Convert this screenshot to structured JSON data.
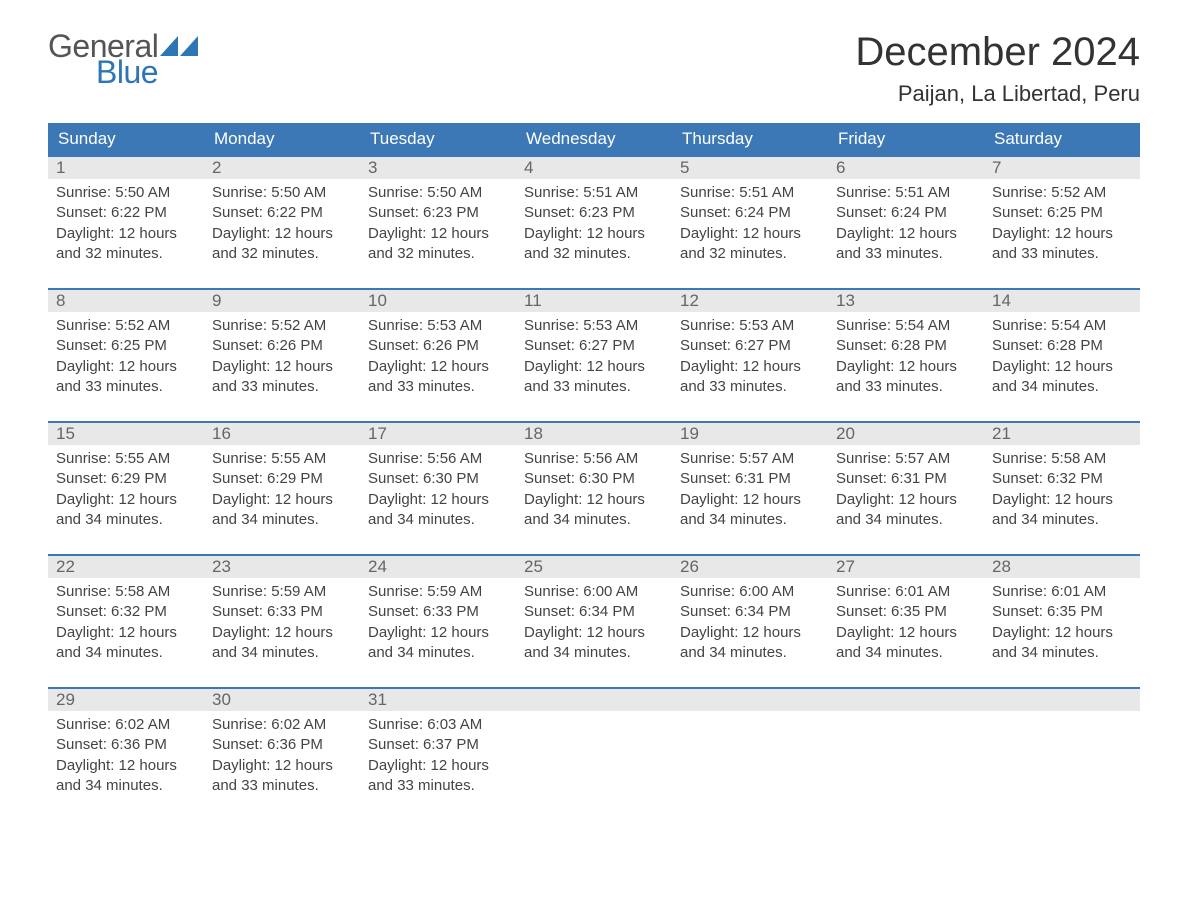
{
  "brand": {
    "line1": "General",
    "line2": "Blue",
    "flag_color": "#2e75b6",
    "text_gray": "#555555"
  },
  "title": "December 2024",
  "location": "Paijan, La Libertad, Peru",
  "colors": {
    "header_bg": "#3b78b5",
    "header_text": "#ffffff",
    "row_border": "#3b78b5",
    "daynum_bg": "#e8e8e8",
    "daynum_text": "#666666",
    "body_text": "#444444",
    "page_bg": "#ffffff"
  },
  "fonts": {
    "title_pt": 40,
    "location_pt": 22,
    "dow_pt": 17,
    "daynum_pt": 17,
    "body_pt": 15
  },
  "days_of_week": [
    "Sunday",
    "Monday",
    "Tuesday",
    "Wednesday",
    "Thursday",
    "Friday",
    "Saturday"
  ],
  "labels": {
    "sunrise": "Sunrise:",
    "sunset": "Sunset:",
    "daylight": "Daylight:"
  },
  "weeks": [
    [
      {
        "n": 1,
        "sunrise": "5:50 AM",
        "sunset": "6:22 PM",
        "daylight": "12 hours and 32 minutes."
      },
      {
        "n": 2,
        "sunrise": "5:50 AM",
        "sunset": "6:22 PM",
        "daylight": "12 hours and 32 minutes."
      },
      {
        "n": 3,
        "sunrise": "5:50 AM",
        "sunset": "6:23 PM",
        "daylight": "12 hours and 32 minutes."
      },
      {
        "n": 4,
        "sunrise": "5:51 AM",
        "sunset": "6:23 PM",
        "daylight": "12 hours and 32 minutes."
      },
      {
        "n": 5,
        "sunrise": "5:51 AM",
        "sunset": "6:24 PM",
        "daylight": "12 hours and 32 minutes."
      },
      {
        "n": 6,
        "sunrise": "5:51 AM",
        "sunset": "6:24 PM",
        "daylight": "12 hours and 33 minutes."
      },
      {
        "n": 7,
        "sunrise": "5:52 AM",
        "sunset": "6:25 PM",
        "daylight": "12 hours and 33 minutes."
      }
    ],
    [
      {
        "n": 8,
        "sunrise": "5:52 AM",
        "sunset": "6:25 PM",
        "daylight": "12 hours and 33 minutes."
      },
      {
        "n": 9,
        "sunrise": "5:52 AM",
        "sunset": "6:26 PM",
        "daylight": "12 hours and 33 minutes."
      },
      {
        "n": 10,
        "sunrise": "5:53 AM",
        "sunset": "6:26 PM",
        "daylight": "12 hours and 33 minutes."
      },
      {
        "n": 11,
        "sunrise": "5:53 AM",
        "sunset": "6:27 PM",
        "daylight": "12 hours and 33 minutes."
      },
      {
        "n": 12,
        "sunrise": "5:53 AM",
        "sunset": "6:27 PM",
        "daylight": "12 hours and 33 minutes."
      },
      {
        "n": 13,
        "sunrise": "5:54 AM",
        "sunset": "6:28 PM",
        "daylight": "12 hours and 33 minutes."
      },
      {
        "n": 14,
        "sunrise": "5:54 AM",
        "sunset": "6:28 PM",
        "daylight": "12 hours and 34 minutes."
      }
    ],
    [
      {
        "n": 15,
        "sunrise": "5:55 AM",
        "sunset": "6:29 PM",
        "daylight": "12 hours and 34 minutes."
      },
      {
        "n": 16,
        "sunrise": "5:55 AM",
        "sunset": "6:29 PM",
        "daylight": "12 hours and 34 minutes."
      },
      {
        "n": 17,
        "sunrise": "5:56 AM",
        "sunset": "6:30 PM",
        "daylight": "12 hours and 34 minutes."
      },
      {
        "n": 18,
        "sunrise": "5:56 AM",
        "sunset": "6:30 PM",
        "daylight": "12 hours and 34 minutes."
      },
      {
        "n": 19,
        "sunrise": "5:57 AM",
        "sunset": "6:31 PM",
        "daylight": "12 hours and 34 minutes."
      },
      {
        "n": 20,
        "sunrise": "5:57 AM",
        "sunset": "6:31 PM",
        "daylight": "12 hours and 34 minutes."
      },
      {
        "n": 21,
        "sunrise": "5:58 AM",
        "sunset": "6:32 PM",
        "daylight": "12 hours and 34 minutes."
      }
    ],
    [
      {
        "n": 22,
        "sunrise": "5:58 AM",
        "sunset": "6:32 PM",
        "daylight": "12 hours and 34 minutes."
      },
      {
        "n": 23,
        "sunrise": "5:59 AM",
        "sunset": "6:33 PM",
        "daylight": "12 hours and 34 minutes."
      },
      {
        "n": 24,
        "sunrise": "5:59 AM",
        "sunset": "6:33 PM",
        "daylight": "12 hours and 34 minutes."
      },
      {
        "n": 25,
        "sunrise": "6:00 AM",
        "sunset": "6:34 PM",
        "daylight": "12 hours and 34 minutes."
      },
      {
        "n": 26,
        "sunrise": "6:00 AM",
        "sunset": "6:34 PM",
        "daylight": "12 hours and 34 minutes."
      },
      {
        "n": 27,
        "sunrise": "6:01 AM",
        "sunset": "6:35 PM",
        "daylight": "12 hours and 34 minutes."
      },
      {
        "n": 28,
        "sunrise": "6:01 AM",
        "sunset": "6:35 PM",
        "daylight": "12 hours and 34 minutes."
      }
    ],
    [
      {
        "n": 29,
        "sunrise": "6:02 AM",
        "sunset": "6:36 PM",
        "daylight": "12 hours and 34 minutes."
      },
      {
        "n": 30,
        "sunrise": "6:02 AM",
        "sunset": "6:36 PM",
        "daylight": "12 hours and 33 minutes."
      },
      {
        "n": 31,
        "sunrise": "6:03 AM",
        "sunset": "6:37 PM",
        "daylight": "12 hours and 33 minutes."
      },
      null,
      null,
      null,
      null
    ]
  ]
}
